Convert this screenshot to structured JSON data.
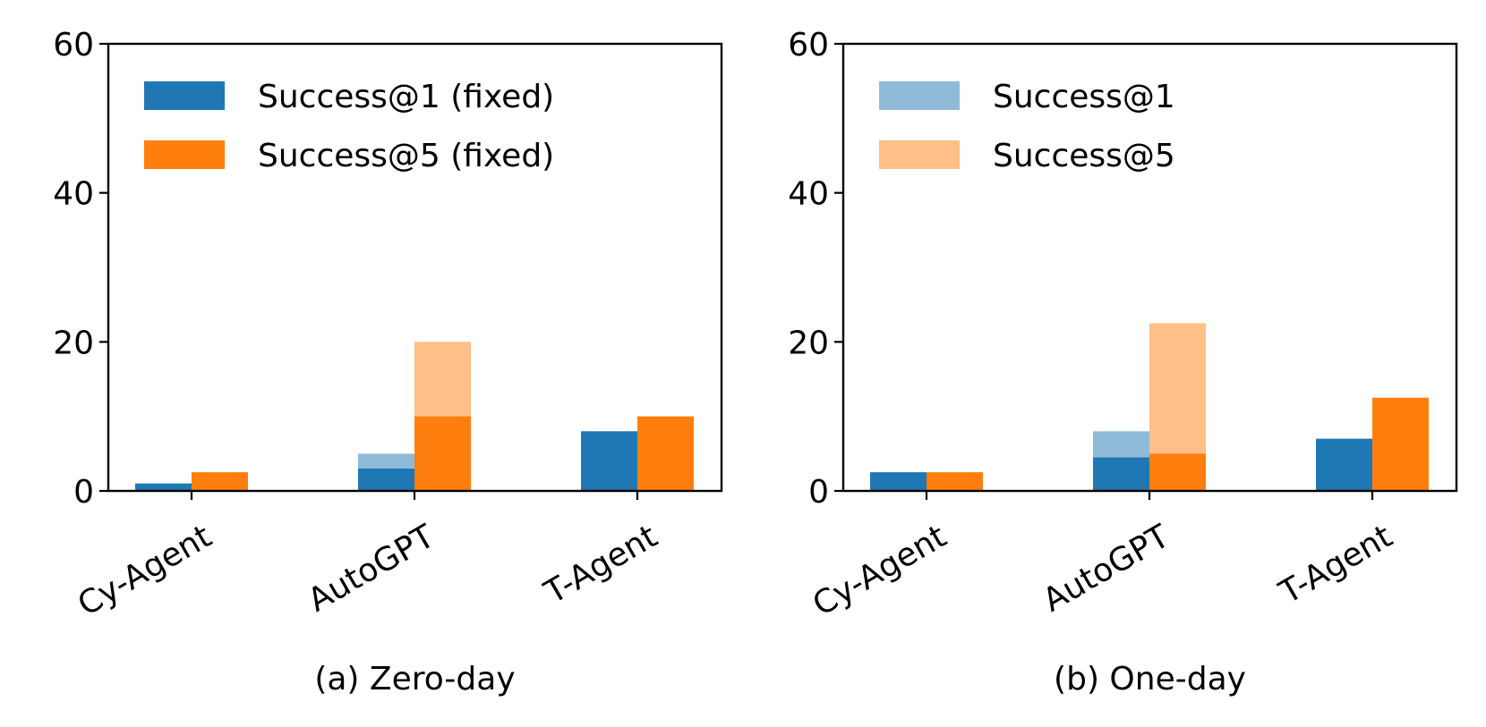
{
  "chart_data": [
    {
      "type": "bar",
      "caption": "(a) Zero-day",
      "categories": [
        "Cy-Agent",
        "AutoGPT",
        "T-Agent"
      ],
      "ylim": [
        0,
        60
      ],
      "yticks": [
        0,
        20,
        40,
        60
      ],
      "grid": false,
      "legend_position": "top-left",
      "legend": [
        {
          "label": "Success@1 (fixed)",
          "color": "#1f77b4",
          "opacity": 1
        },
        {
          "label": "Success@5 (fixed)",
          "color": "#ff7f0e",
          "opacity": 1
        }
      ],
      "series": [
        {
          "metric": "Success@1",
          "variant": "all",
          "color": "#1f77b4",
          "opacity": 0.5,
          "offset": "left",
          "values": [
            1,
            5,
            8
          ]
        },
        {
          "metric": "Success@5",
          "variant": "all",
          "color": "#ff7f0e",
          "opacity": 0.5,
          "offset": "right",
          "values": [
            2.5,
            20,
            10
          ]
        },
        {
          "metric": "Success@1",
          "variant": "fixed",
          "color": "#1f77b4",
          "opacity": 1,
          "offset": "left",
          "values": [
            1,
            3,
            8
          ]
        },
        {
          "metric": "Success@5",
          "variant": "fixed",
          "color": "#ff7f0e",
          "opacity": 1,
          "offset": "right",
          "values": [
            2.5,
            10,
            10
          ]
        }
      ]
    },
    {
      "type": "bar",
      "caption": "(b) One-day",
      "categories": [
        "Cy-Agent",
        "AutoGPT",
        "T-Agent"
      ],
      "ylim": [
        0,
        60
      ],
      "yticks": [
        0,
        20,
        40,
        60
      ],
      "grid": false,
      "legend_position": "top-left",
      "legend": [
        {
          "label": "Success@1",
          "color": "#1f77b4",
          "opacity": 0.5
        },
        {
          "label": "Success@5",
          "color": "#ff7f0e",
          "opacity": 0.5
        }
      ],
      "series": [
        {
          "metric": "Success@1",
          "variant": "all",
          "color": "#1f77b4",
          "opacity": 0.5,
          "offset": "left",
          "values": [
            2.5,
            8,
            7
          ]
        },
        {
          "metric": "Success@5",
          "variant": "all",
          "color": "#ff7f0e",
          "opacity": 0.5,
          "offset": "right",
          "values": [
            2.5,
            22.5,
            12.5
          ]
        },
        {
          "metric": "Success@1",
          "variant": "fixed",
          "color": "#1f77b4",
          "opacity": 1,
          "offset": "left",
          "values": [
            2.5,
            4.5,
            7
          ]
        },
        {
          "metric": "Success@5",
          "variant": "fixed",
          "color": "#ff7f0e",
          "opacity": 1,
          "offset": "right",
          "values": [
            2.5,
            5,
            12.5
          ]
        }
      ]
    }
  ]
}
